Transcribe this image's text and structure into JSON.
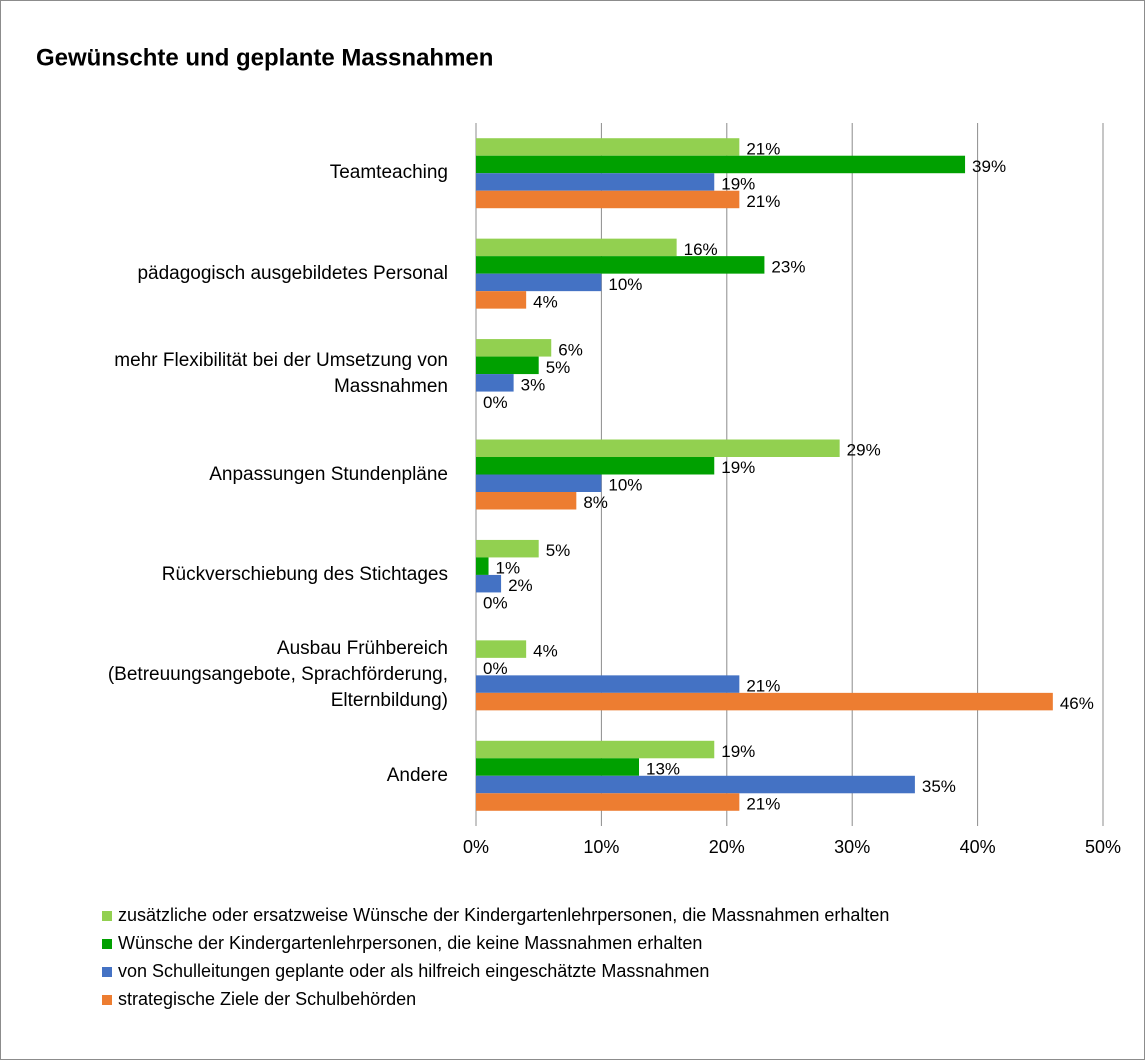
{
  "chart_data": {
    "type": "bar",
    "orientation": "horizontal",
    "title": "Gewünschte und geplante Massnahmen",
    "categories": [
      "Teamteaching",
      "pädagogisch ausgebildetes Personal",
      "mehr Flexibilität bei der Umsetzung von Massnahmen",
      "Anpassungen Stundenpläne",
      "Rückverschiebung des Stichtages",
      "Ausbau Frühbereich (Betreuungsangebote, Sprachförderung, Elternbildung)",
      "Andere"
    ],
    "series": [
      {
        "name": "zusätzliche oder ersatzweise Wünsche der Kindergartenlehrpersonen, die Massnahmen erhalten",
        "color": "#92d050",
        "values": [
          21,
          16,
          6,
          29,
          5,
          4,
          19
        ],
        "value_labels": [
          "21%",
          "16%",
          "6%",
          "29%",
          "5%",
          "4%",
          "19%"
        ]
      },
      {
        "name": "Wünsche der Kindergartenlehrpersonen, die keine Massnahmen erhalten",
        "color": "#00a000",
        "values": [
          39,
          23,
          5,
          19,
          1,
          0,
          13
        ],
        "value_labels": [
          "39%",
          "23%",
          "5%",
          "19%",
          "1%",
          "0%",
          "13%"
        ]
      },
      {
        "name": "von Schulleitungen geplante oder als hilfreich eingeschätzte Massnahmen",
        "color": "#4472c4",
        "values": [
          19,
          10,
          3,
          10,
          2,
          21,
          35
        ],
        "value_labels": [
          "19%",
          "10%",
          "3%",
          "10%",
          "2%",
          "21%",
          "35%"
        ]
      },
      {
        "name": "strategische Ziele der Schulbehörden",
        "color": "#ed7d31",
        "values": [
          21,
          4,
          0,
          8,
          0,
          46,
          21
        ],
        "value_labels": [
          "21%",
          "4%",
          "0%",
          "8%",
          "0%",
          "46%",
          "21%"
        ]
      }
    ],
    "xlim": [
      0,
      50
    ],
    "xticks": [
      {
        "value": 0,
        "label": "0%"
      },
      {
        "value": 10,
        "label": "10%"
      },
      {
        "value": 20,
        "label": "20%"
      },
      {
        "value": 30,
        "label": "30%"
      },
      {
        "value": 40,
        "label": "40%"
      },
      {
        "value": 50,
        "label": "50%"
      }
    ],
    "grid": true,
    "legend": "bottom"
  }
}
